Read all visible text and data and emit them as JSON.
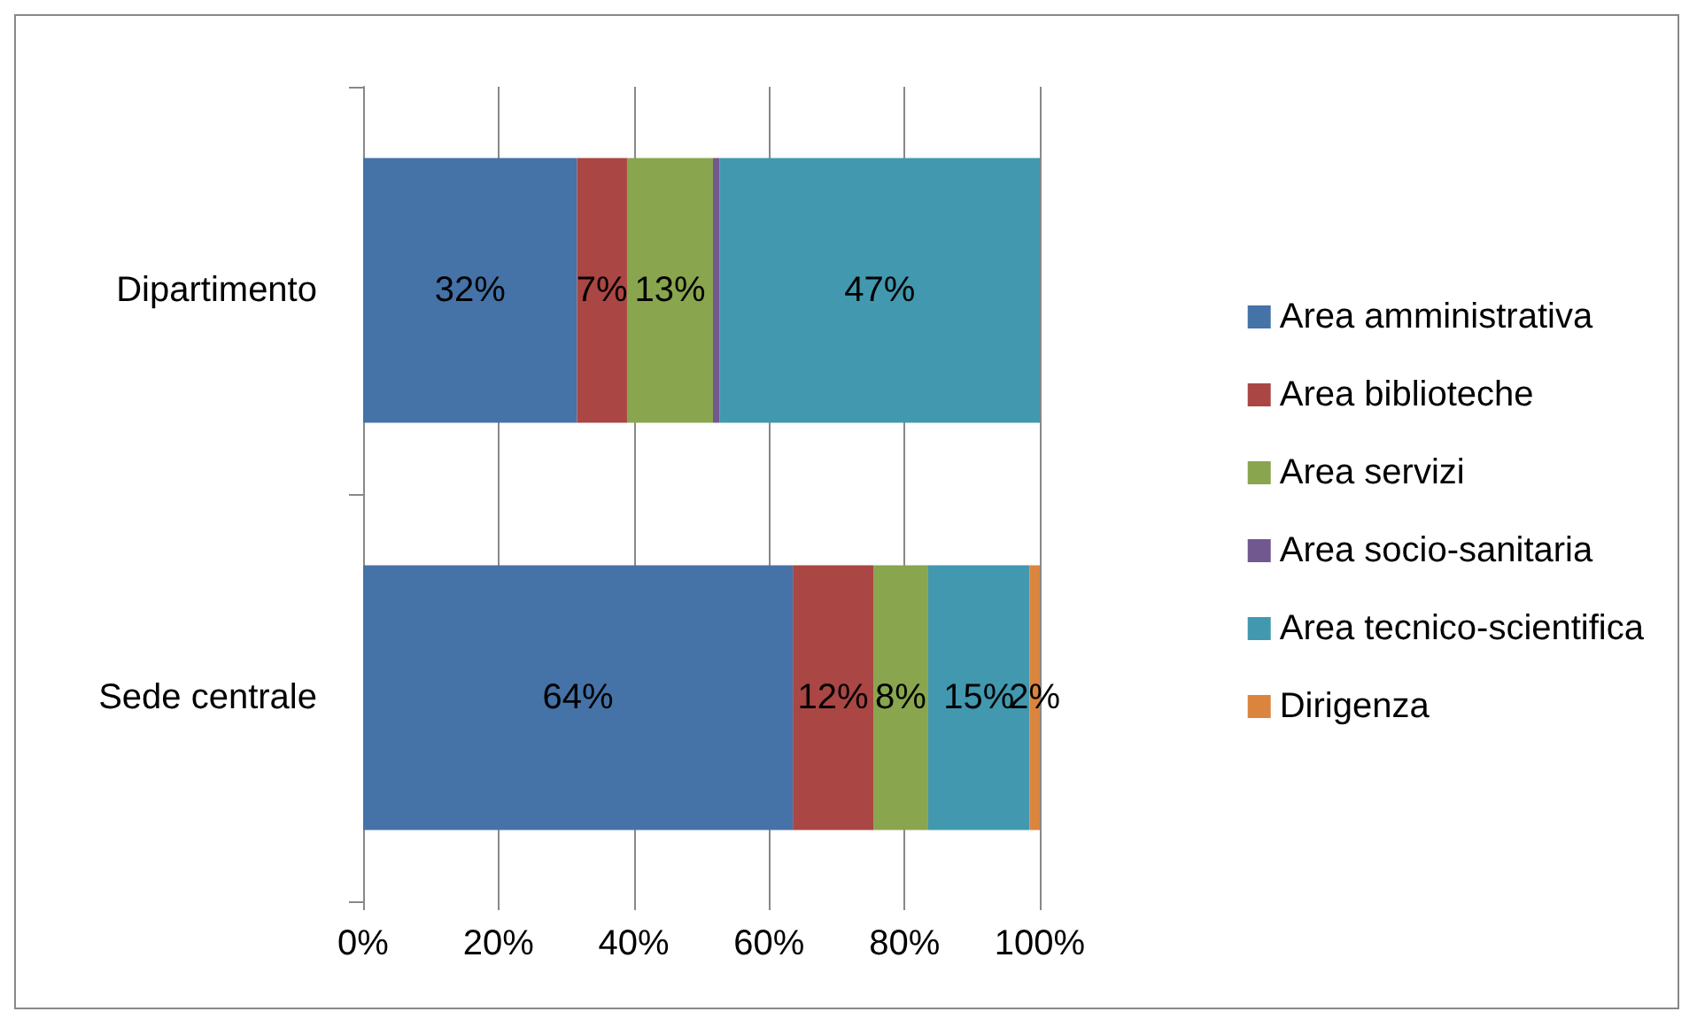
{
  "chart_data": {
    "type": "bar",
    "orientation": "horizontal",
    "stacked": true,
    "categories": [
      "Dipartimento",
      "Sede centrale"
    ],
    "series": [
      {
        "name": "Area amministrativa",
        "color": "#4572a7",
        "values": [
          31.6,
          63.5
        ],
        "value_labels": [
          "32%",
          "64%"
        ]
      },
      {
        "name": "Area biblioteche",
        "color": "#aa4643",
        "values": [
          7.4,
          11.9
        ],
        "value_labels": [
          "7%",
          "12%"
        ]
      },
      {
        "name": "Area servizi",
        "color": "#89a54e",
        "values": [
          12.7,
          8.1
        ],
        "value_labels": [
          "13%",
          "8%"
        ]
      },
      {
        "name": "Area socio-sanitaria",
        "color": "#71588f",
        "values": [
          1.0,
          0
        ],
        "value_labels": [
          null,
          null
        ]
      },
      {
        "name": "Area tecnico-scientifica",
        "color": "#4198af",
        "values": [
          47.3,
          15.0
        ],
        "value_labels": [
          "47%",
          "15%"
        ]
      },
      {
        "name": "Dirigenza",
        "color": "#db843d",
        "values": [
          0,
          1.5
        ],
        "value_labels": [
          null,
          "2%"
        ]
      }
    ],
    "xlim": [
      0,
      100
    ],
    "xticks": [
      {
        "value": 0,
        "label": "0%"
      },
      {
        "value": 20,
        "label": "20%"
      },
      {
        "value": 40,
        "label": "40%"
      },
      {
        "value": 60,
        "label": "60%"
      },
      {
        "value": 80,
        "label": "80%"
      },
      {
        "value": 100,
        "label": "100%"
      }
    ],
    "grid": "x",
    "legend": "right"
  }
}
